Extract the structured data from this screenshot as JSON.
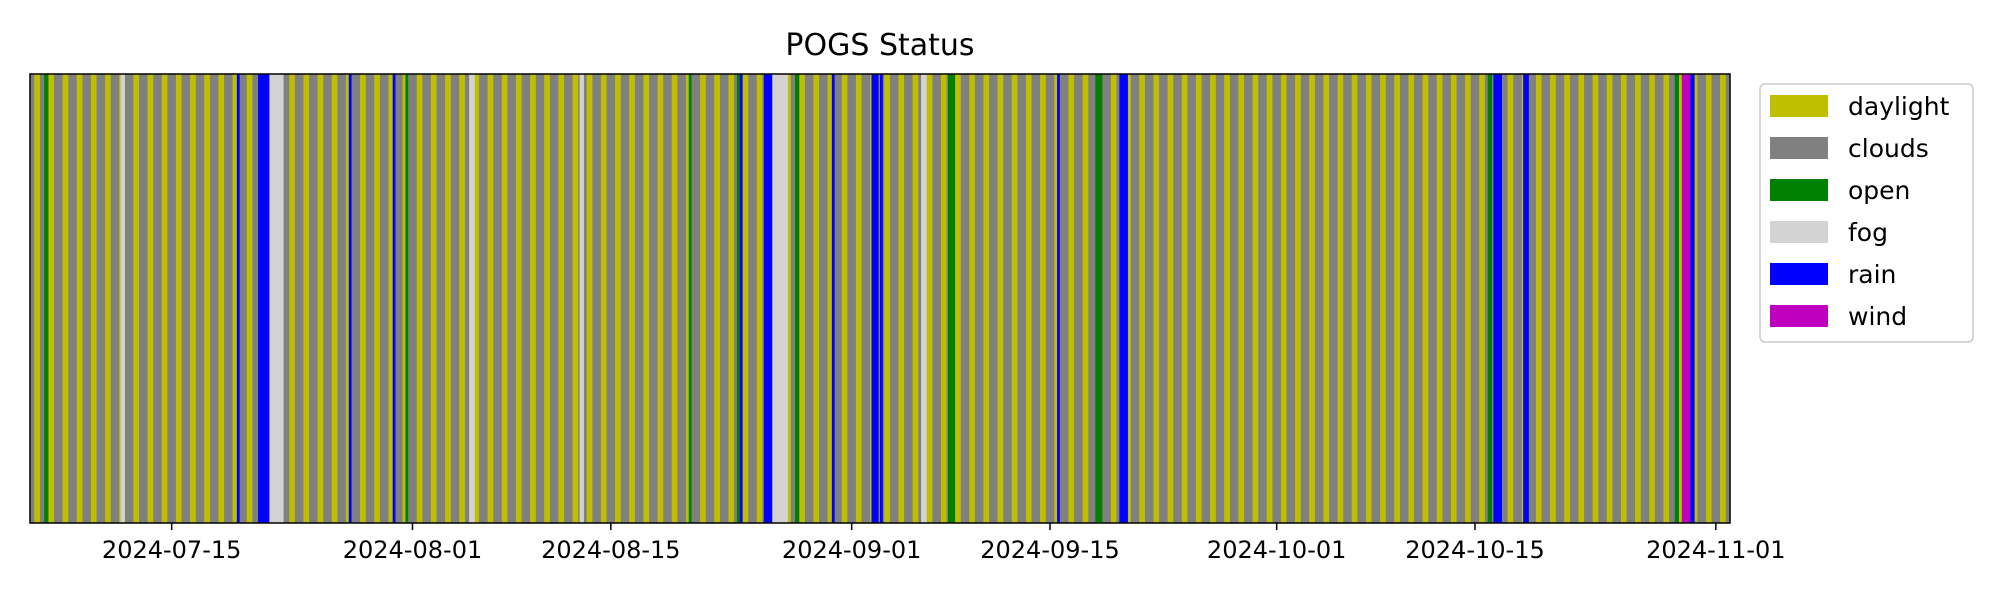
{
  "chart_data": {
    "type": "bar",
    "title": "POGS Status",
    "xlabel": "",
    "ylabel": "",
    "x_axis": "date",
    "xlim": [
      "2024-07-05",
      "2024-11-02"
    ],
    "xticks": [
      "2024-07-15",
      "2024-08-01",
      "2024-08-15",
      "2024-09-01",
      "2024-09-15",
      "2024-10-01",
      "2024-10-15",
      "2024-11-01"
    ],
    "y_ticks_visible": false,
    "grid": false,
    "legend_position": "outside-top-right",
    "colors": {
      "daylight": "#bfbf00",
      "clouds": "#808080",
      "open": "#008000",
      "fog": "#d3d3d3",
      "rain": "#0000ff",
      "wind": "#bf00bf"
    },
    "legend": [
      {
        "name": "daylight",
        "color": "#bfbf00"
      },
      {
        "name": "clouds",
        "color": "#808080"
      },
      {
        "name": "open",
        "color": "#008000"
      },
      {
        "name": "fog",
        "color": "#d3d3d3"
      },
      {
        "name": "rain",
        "color": "#0000ff"
      },
      {
        "name": "wind",
        "color": "#bf00bf"
      }
    ],
    "background_status": "clouds",
    "daylight_periods": "one daytime band on each day of the range",
    "intervals": [
      {
        "status": "open",
        "start": "2024-07-06",
        "end": "2024-07-06.3"
      },
      {
        "status": "fog",
        "start": "2024-07-11.4",
        "end": "2024-07-11.7"
      },
      {
        "status": "rain",
        "start": "2024-07-19.6",
        "end": "2024-07-19.8"
      },
      {
        "status": "rain",
        "start": "2024-07-21.1",
        "end": "2024-07-21.9"
      },
      {
        "status": "fog",
        "start": "2024-07-21.9",
        "end": "2024-07-22.9"
      },
      {
        "status": "rain",
        "start": "2024-07-27.5",
        "end": "2024-07-27.7"
      },
      {
        "status": "rain",
        "start": "2024-07-30.6",
        "end": "2024-07-30.8"
      },
      {
        "status": "open",
        "start": "2024-07-31.5",
        "end": "2024-07-31.7"
      },
      {
        "status": "fog",
        "start": "2024-08-05.0",
        "end": "2024-08-05.4"
      },
      {
        "status": "fog",
        "start": "2024-08-12.8",
        "end": "2024-08-13.1"
      },
      {
        "status": "open",
        "start": "2024-08-20.5",
        "end": "2024-08-20.7"
      },
      {
        "status": "open",
        "start": "2024-08-23.9",
        "end": "2024-08-24.1"
      },
      {
        "status": "rain",
        "start": "2024-08-24.1",
        "end": "2024-08-24.3"
      },
      {
        "status": "rain",
        "start": "2024-08-25.8",
        "end": "2024-08-26.4"
      },
      {
        "status": "fog",
        "start": "2024-08-26.4",
        "end": "2024-08-27.5"
      },
      {
        "status": "open",
        "start": "2024-08-28.0",
        "end": "2024-08-28.3"
      },
      {
        "status": "rain",
        "start": "2024-08-30.6",
        "end": "2024-08-30.8"
      },
      {
        "status": "rain",
        "start": "2024-09-02.4",
        "end": "2024-09-02.9"
      },
      {
        "status": "rain",
        "start": "2024-09-03.0",
        "end": "2024-09-03.2"
      },
      {
        "status": "fog",
        "start": "2024-09-05.9",
        "end": "2024-09-06.3"
      },
      {
        "status": "open",
        "start": "2024-09-07.8",
        "end": "2024-09-08.3"
      },
      {
        "status": "rain",
        "start": "2024-09-15.5",
        "end": "2024-09-15.7"
      },
      {
        "status": "open",
        "start": "2024-09-18.2",
        "end": "2024-09-18.7"
      },
      {
        "status": "rain",
        "start": "2024-09-19.9",
        "end": "2024-09-20.5"
      },
      {
        "status": "open",
        "start": "2024-10-15.9",
        "end": "2024-10-16.2"
      },
      {
        "status": "rain",
        "start": "2024-10-16.3",
        "end": "2024-10-16.9"
      },
      {
        "status": "rain",
        "start": "2024-10-18.4",
        "end": "2024-10-18.8"
      },
      {
        "status": "open",
        "start": "2024-10-29.1",
        "end": "2024-10-29.4"
      },
      {
        "status": "wind",
        "start": "2024-10-29.6",
        "end": "2024-10-30.2"
      },
      {
        "status": "rain",
        "start": "2024-10-30.2",
        "end": "2024-10-30.5"
      }
    ]
  }
}
